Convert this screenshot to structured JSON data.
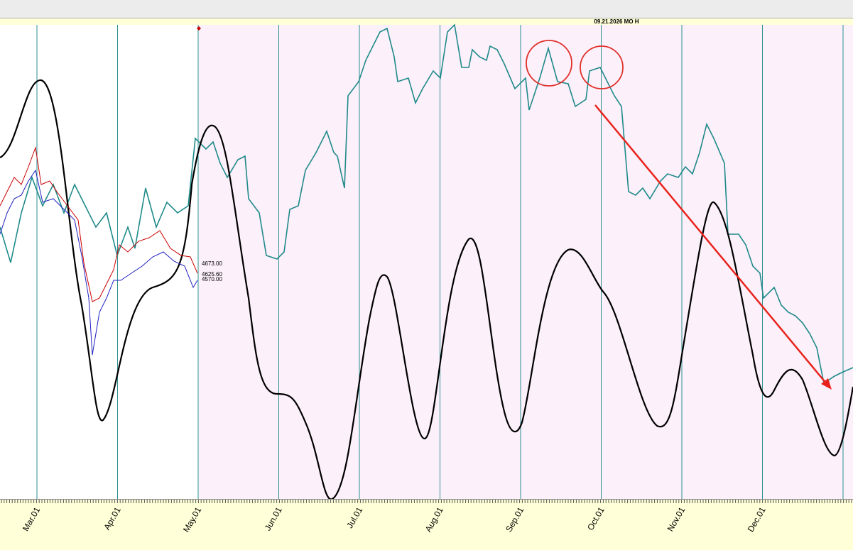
{
  "header": {
    "date_label": "09.21.2026 MO H"
  },
  "price_labels": [
    "4673.00",
    "4625.60",
    "4570.00"
  ],
  "axis": {
    "months": [
      "Mar.01",
      "Apr.01",
      "May.01",
      "Jun.01",
      "Jul.01",
      "Aug.01",
      "Sep.01",
      "Oct.01",
      "Nov.01",
      "Dec.01"
    ]
  }
}
